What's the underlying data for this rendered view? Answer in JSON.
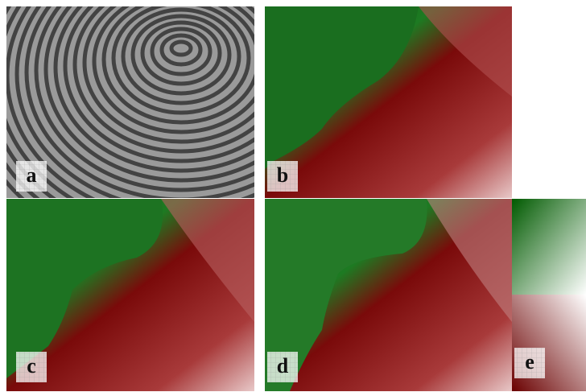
{
  "panels": [
    {
      "label": "a"
    },
    {
      "label": "b"
    },
    {
      "label": "c"
    },
    {
      "label": "d"
    },
    {
      "label": "e"
    }
  ]
}
